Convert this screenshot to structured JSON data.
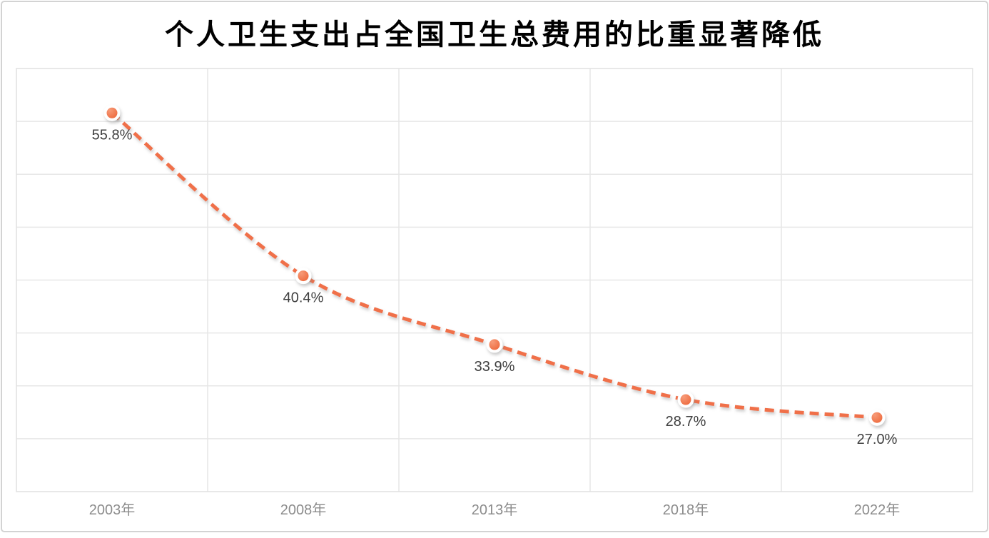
{
  "title": "个人卫生支出占全国卫生总费用的比重显著降低",
  "frame": {
    "border_color": "#d3d3d3",
    "background": "#ffffff"
  },
  "chart_data": {
    "type": "line",
    "categories": [
      "2003年",
      "2008年",
      "2013年",
      "2018年",
      "2022年"
    ],
    "series": [
      {
        "name": "个人卫生支出占全国卫生总费用的比重",
        "values": [
          55.8,
          40.4,
          33.9,
          28.7,
          27.0
        ]
      }
    ],
    "data_labels": [
      "55.8%",
      "40.4%",
      "33.9%",
      "28.7%",
      "27.0%"
    ],
    "title": "个人卫生支出占全国卫生总费用的比重显著降低",
    "xlabel": "",
    "ylabel": "",
    "ylim": [
      20,
      60
    ],
    "y_gridline_step": 5,
    "grid": true,
    "legend_position": "none",
    "line_style": "dashed",
    "line_color": "#f0704a",
    "marker_fill_light": "#f79b78",
    "marker_fill_dark": "#ec6234",
    "marker_ring_color": "#ffffff",
    "gridline_color": "#e7e7e7",
    "plot_border_color": "#e2e2e2",
    "data_label_color": "#3f3f3f",
    "axis_label_color": "#8c8c8c"
  }
}
